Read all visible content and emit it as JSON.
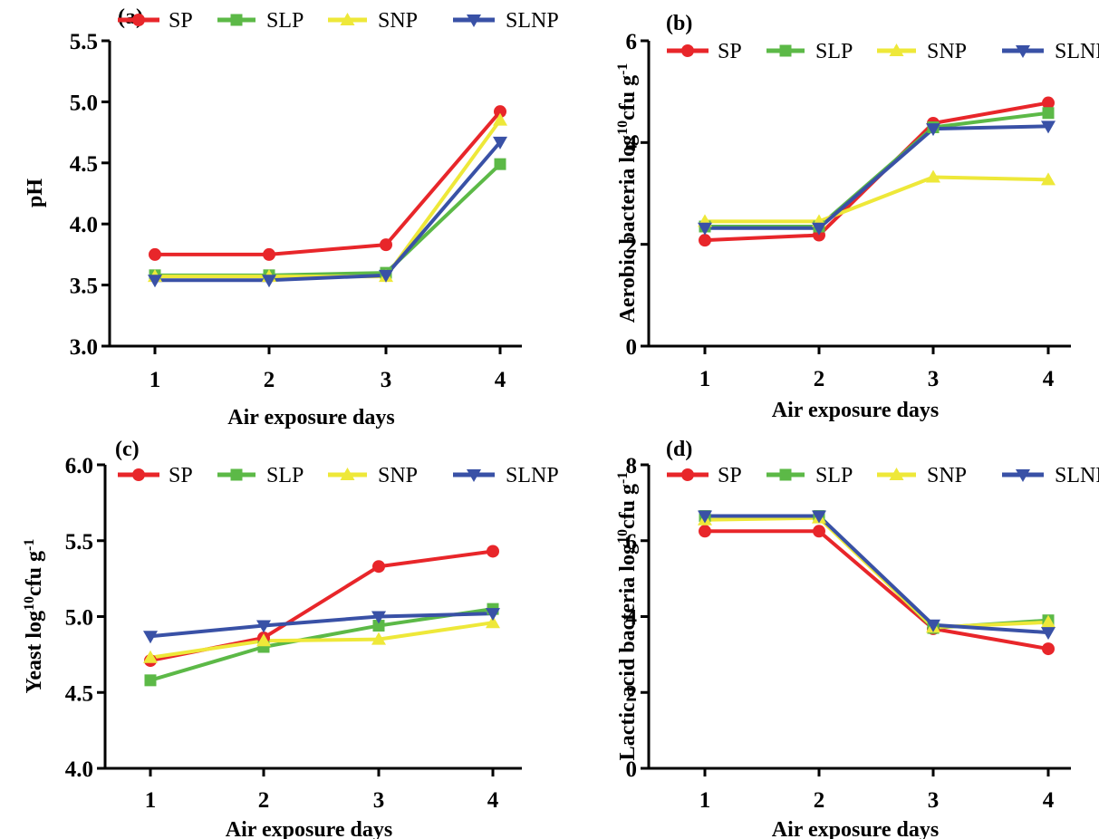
{
  "colors": {
    "SP": "#e8262a",
    "SLP": "#5cb947",
    "SNP": "#eee839",
    "SLNP": "#3951a6"
  },
  "chart_data": [
    {
      "panel": "(a)",
      "type": "line",
      "x": [
        "1",
        "2",
        "3",
        "4"
      ],
      "xlabel": "Air exposure days",
      "ylabel": "pH",
      "ylim": [
        3.0,
        5.5
      ],
      "yticks": [
        "3.0",
        "3.5",
        "4.0",
        "4.5",
        "5.0",
        "5.5"
      ],
      "legend": "top",
      "series": [
        {
          "name": "SP",
          "marker": "circle",
          "values": [
            3.75,
            3.75,
            3.83,
            4.92
          ]
        },
        {
          "name": "SLP",
          "marker": "square",
          "values": [
            3.58,
            3.58,
            3.6,
            4.49
          ]
        },
        {
          "name": "SNP",
          "marker": "triangle-up",
          "values": [
            3.57,
            3.57,
            3.57,
            4.85
          ]
        },
        {
          "name": "SLNP",
          "marker": "triangle-down",
          "values": [
            3.54,
            3.54,
            3.58,
            4.67
          ]
        }
      ]
    },
    {
      "panel": "(b)",
      "type": "line",
      "x": [
        "1",
        "2",
        "3",
        "4"
      ],
      "xlabel": "Air exposure days",
      "ylabel": "Aerobic bacteria log",
      "ylabel_sup": "10",
      "ylabel_tail": "cfu g",
      "ylabel_tail_sup": "-1",
      "ylim": [
        0,
        6
      ],
      "yticks": [
        "0",
        "2",
        "4",
        "6"
      ],
      "legend": "top",
      "series": [
        {
          "name": "SP",
          "marker": "circle",
          "values": [
            2.08,
            2.18,
            4.38,
            4.78
          ]
        },
        {
          "name": "SLP",
          "marker": "square",
          "values": [
            2.35,
            2.35,
            4.3,
            4.58
          ]
        },
        {
          "name": "SNP",
          "marker": "triangle-up",
          "values": [
            2.45,
            2.45,
            3.32,
            3.27
          ]
        },
        {
          "name": "SLNP",
          "marker": "triangle-down",
          "values": [
            2.32,
            2.32,
            4.27,
            4.32
          ]
        }
      ]
    },
    {
      "panel": "(c)",
      "type": "line",
      "x": [
        "1",
        "2",
        "3",
        "4"
      ],
      "xlabel": "Air exposure days",
      "ylabel": "Yeast log",
      "ylabel_sup": "10",
      "ylabel_tail": "cfu g",
      "ylabel_tail_sup": "-1",
      "ylim": [
        4.0,
        6.0
      ],
      "yticks": [
        "4.0",
        "4.5",
        "5.0",
        "5.5",
        "6.0"
      ],
      "legend": "top",
      "series": [
        {
          "name": "SP",
          "marker": "circle",
          "values": [
            4.71,
            4.86,
            5.33,
            5.43
          ]
        },
        {
          "name": "SLP",
          "marker": "square",
          "values": [
            4.58,
            4.8,
            4.94,
            5.05
          ]
        },
        {
          "name": "SNP",
          "marker": "triangle-up",
          "values": [
            4.73,
            4.84,
            4.85,
            4.96
          ]
        },
        {
          "name": "SLNP",
          "marker": "triangle-down",
          "values": [
            4.87,
            4.94,
            5.0,
            5.02
          ]
        }
      ]
    },
    {
      "panel": "(d)",
      "type": "line",
      "x": [
        "1",
        "2",
        "3",
        "4"
      ],
      "xlabel": "Air exposure days",
      "ylabel": "Lactic acid bacteria log",
      "ylabel_sup": "10",
      "ylabel_tail": "cfu g",
      "ylabel_tail_sup": "-1",
      "ylim": [
        0,
        8
      ],
      "yticks": [
        "0",
        "2",
        "4",
        "6",
        "8"
      ],
      "legend": "top",
      "series": [
        {
          "name": "SP",
          "marker": "circle",
          "values": [
            6.25,
            6.25,
            3.68,
            3.15
          ]
        },
        {
          "name": "SLP",
          "marker": "square",
          "values": [
            6.65,
            6.65,
            3.7,
            3.9
          ]
        },
        {
          "name": "SNP",
          "marker": "triangle-up",
          "values": [
            6.55,
            6.6,
            3.72,
            3.85
          ]
        },
        {
          "name": "SLNP",
          "marker": "triangle-down",
          "values": [
            6.65,
            6.65,
            3.78,
            3.58
          ]
        }
      ]
    }
  ]
}
